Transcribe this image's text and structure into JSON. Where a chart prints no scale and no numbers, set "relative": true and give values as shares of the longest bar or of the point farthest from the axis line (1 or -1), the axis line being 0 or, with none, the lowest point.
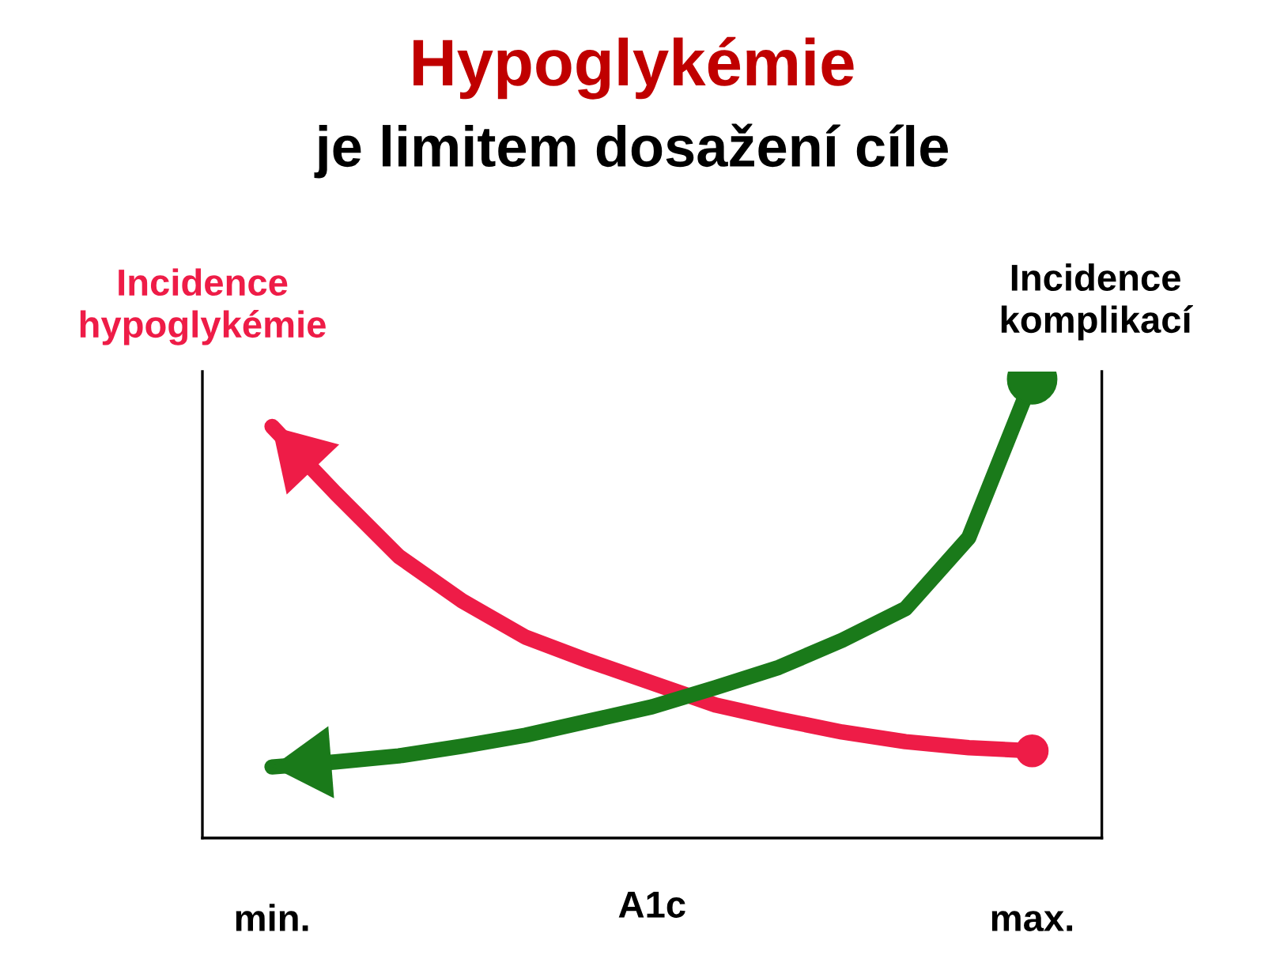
{
  "chart_data": {
    "type": "line",
    "title": "Hypoglykémie",
    "subtitle": "je limitem dosažení cíle",
    "xlabel": "A1c",
    "relative": true,
    "grid": false,
    "legend": false,
    "categories": [
      "min.",
      null,
      null,
      null,
      null,
      null,
      null,
      null,
      null,
      null,
      null,
      null,
      "max."
    ],
    "series": [
      {
        "name": "Incidence hypoglykémie",
        "color": "#ee1c47",
        "values": [
          0.897,
          0.752,
          0.614,
          0.517,
          0.438,
          0.386,
          0.338,
          0.29,
          0.259,
          0.231,
          0.21,
          0.197,
          0.19
        ]
      },
      {
        "name": "Incidence komplikací",
        "color": "#1a7a1a",
        "values": [
          0.155,
          0.166,
          0.179,
          0.2,
          0.224,
          0.255,
          0.286,
          0.328,
          0.372,
          0.431,
          0.5,
          0.655,
          1.0
        ]
      }
    ]
  }
}
